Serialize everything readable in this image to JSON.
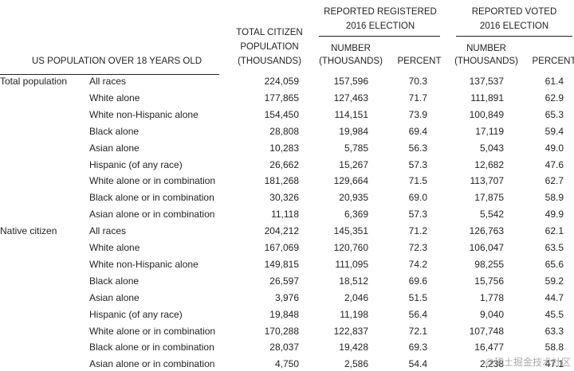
{
  "header": {
    "stub": "US POPULATION OVER 18 YEARS OLD",
    "total": [
      "TOTAL CITIZEN",
      "POPULATION",
      "(THOUSANDS)"
    ],
    "registered": {
      "title": [
        "REPORTED REGISTERED",
        "2016 ELECTION"
      ],
      "number": [
        "NUMBER",
        "(THOUSANDS)"
      ],
      "percent": "PERCENT"
    },
    "voted": {
      "title": [
        "REPORTED VOTED",
        "2016 ELECTION"
      ],
      "number": [
        "NUMBER",
        "(THOUSANDS)"
      ],
      "percent": "PERCENT"
    }
  },
  "groups": [
    {
      "label": "Total population",
      "rows": [
        [
          "All races",
          "224,059",
          "157,596",
          "70.3",
          "137,537",
          "61.4"
        ],
        [
          "White alone",
          "177,865",
          "127,463",
          "71.7",
          "111,891",
          "62.9"
        ],
        [
          "White non-Hispanic alone",
          "154,450",
          "114,151",
          "73.9",
          "100,849",
          "65.3"
        ],
        [
          "Black alone",
          "28,808",
          "19,984",
          "69.4",
          "17,119",
          "59.4"
        ],
        [
          "Asian alone",
          "10,283",
          "5,785",
          "56.3",
          "5,043",
          "49.0"
        ],
        [
          "Hispanic (of any race)",
          "26,662",
          "15,267",
          "57.3",
          "12,682",
          "47.6"
        ],
        [
          "White alone or in combination",
          "181,268",
          "129,664",
          "71.5",
          "113,707",
          "62.7"
        ],
        [
          "Black alone or in combination",
          "30,326",
          "20,935",
          "69.0",
          "17,875",
          "58.9"
        ],
        [
          "Asian alone or in combination",
          "11,118",
          "6,369",
          "57.3",
          "5,542",
          "49.9"
        ]
      ]
    },
    {
      "label": "Native citizen",
      "rows": [
        [
          "All races",
          "204,212",
          "145,351",
          "71.2",
          "126,763",
          "62.1"
        ],
        [
          "White alone",
          "167,069",
          "120,760",
          "72.3",
          "106,047",
          "63.5"
        ],
        [
          "White non-Hispanic alone",
          "149,815",
          "111,095",
          "74.2",
          "98,255",
          "65.6"
        ],
        [
          "Black alone",
          "26,597",
          "18,512",
          "69.6",
          "15,756",
          "59.2"
        ],
        [
          "Asian alone",
          "3,976",
          "2,046",
          "51.5",
          "1,778",
          "44.7"
        ],
        [
          "Hispanic (of any race)",
          "19,848",
          "11,198",
          "56.4",
          "9,040",
          "45.5"
        ],
        [
          "White alone or in combination",
          "170,288",
          "122,837",
          "72.1",
          "107,748",
          "63.3"
        ],
        [
          "Black alone or in combination",
          "28,037",
          "19,428",
          "69.3",
          "16,477",
          "58.8"
        ],
        [
          "Asian alone or in combination",
          "4,750",
          "2,586",
          "54.4",
          "2,238",
          "47.1"
        ]
      ]
    }
  ],
  "watermark": "@稀土掘金技术社区"
}
